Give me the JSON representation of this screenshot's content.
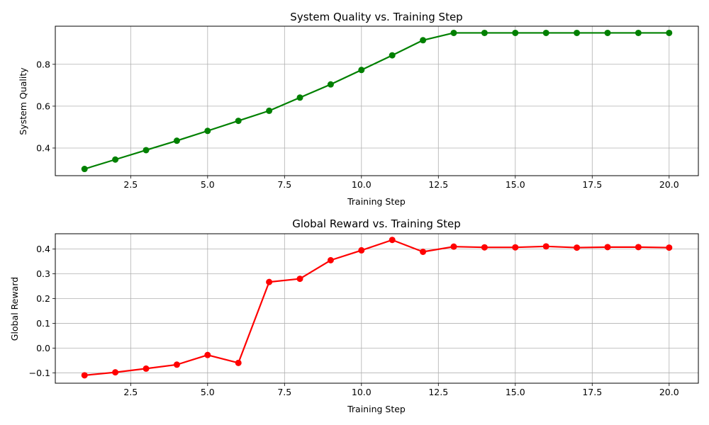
{
  "chart_data": [
    {
      "type": "line",
      "title": "System Quality vs. Training Step",
      "xlabel": "Training Step",
      "ylabel": "System Quality",
      "xlim": [
        0.05,
        20.95
      ],
      "ylim": [
        0.268,
        0.982
      ],
      "xticks": [
        2.5,
        5.0,
        7.5,
        10.0,
        12.5,
        15.0,
        17.5,
        20.0
      ],
      "xtick_labels": [
        "2.5",
        "5.0",
        "7.5",
        "10.0",
        "12.5",
        "15.0",
        "17.5",
        "20.0"
      ],
      "yticks": [
        0.4,
        0.6,
        0.8
      ],
      "ytick_labels": [
        "0.4",
        "0.6",
        "0.8"
      ],
      "grid": true,
      "color": "#008000",
      "series": [
        {
          "x": [
            1,
            2,
            3,
            4,
            5,
            6,
            7,
            8,
            9,
            10,
            11,
            12,
            13,
            14,
            15,
            16,
            17,
            18,
            19,
            20
          ],
          "values": [
            0.3,
            0.345,
            0.39,
            0.435,
            0.482,
            0.53,
            0.578,
            0.641,
            0.704,
            0.773,
            0.843,
            0.915,
            0.95,
            0.95,
            0.95,
            0.95,
            0.95,
            0.95,
            0.95,
            0.95
          ]
        }
      ]
    },
    {
      "type": "line",
      "title": "Global Reward vs. Training Step",
      "xlabel": "Training Step",
      "ylabel": "Global Reward",
      "xlim": [
        0.05,
        20.95
      ],
      "ylim": [
        -0.142,
        0.462
      ],
      "xticks": [
        2.5,
        5.0,
        7.5,
        10.0,
        12.5,
        15.0,
        17.5,
        20.0
      ],
      "xtick_labels": [
        "2.5",
        "5.0",
        "7.5",
        "10.0",
        "12.5",
        "15.0",
        "17.5",
        "20.0"
      ],
      "yticks": [
        -0.1,
        0.0,
        0.1,
        0.2,
        0.3,
        0.4
      ],
      "ytick_labels": [
        "−0.1",
        "0.0",
        "0.1",
        "0.2",
        "0.3",
        "0.4"
      ],
      "grid": true,
      "color": "#ff0000",
      "series": [
        {
          "x": [
            1,
            2,
            3,
            4,
            5,
            6,
            7,
            8,
            9,
            10,
            11,
            12,
            13,
            14,
            15,
            16,
            17,
            18,
            19,
            20
          ],
          "values": [
            -0.11,
            -0.098,
            -0.083,
            -0.067,
            -0.028,
            -0.06,
            0.267,
            0.28,
            0.355,
            0.395,
            0.437,
            0.389,
            0.41,
            0.407,
            0.407,
            0.411,
            0.406,
            0.408,
            0.408,
            0.406
          ]
        }
      ]
    }
  ]
}
